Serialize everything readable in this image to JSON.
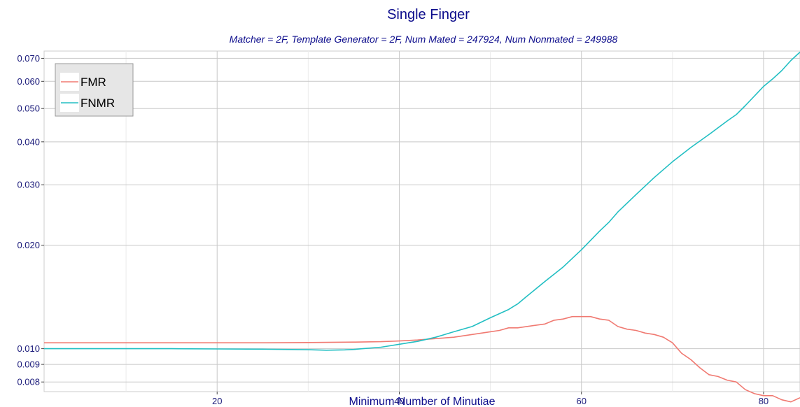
{
  "chart_data": {
    "type": "line",
    "title": "Single Finger",
    "subtitle": "Matcher = 2F,   Template Generator = 2F,   Num Mated = 247924,   Num Nonmated = 249988",
    "xlabel": "Minimum Number of Minutiae",
    "ylabel": "",
    "xlim": [
      1,
      84
    ],
    "ylim": [
      0.0075,
      0.0735
    ],
    "y_scale": "log",
    "x_ticks": [
      20,
      40,
      60,
      80
    ],
    "y_ticks": [
      0.008,
      0.009,
      0.01,
      0.02,
      0.03,
      0.04,
      0.05,
      0.06,
      0.07
    ],
    "x_tick_labels": [
      "20",
      "40",
      "60",
      "80"
    ],
    "y_tick_labels": [
      "0.008",
      "0.009",
      "0.010",
      "0.020",
      "0.030",
      "0.040",
      "0.050",
      "0.060",
      "0.070"
    ],
    "grid": true,
    "legend_position": "top-left",
    "series": [
      {
        "name": "FMR",
        "color": "#f07a72",
        "x": [
          1,
          5,
          10,
          15,
          20,
          25,
          30,
          35,
          38,
          40,
          42,
          44,
          46,
          48,
          50,
          51,
          52,
          53,
          54,
          55,
          56,
          57,
          58,
          59,
          60,
          61,
          62,
          63,
          64,
          65,
          66,
          67,
          68,
          69,
          70,
          71,
          72,
          73,
          74,
          75,
          76,
          77,
          78,
          79,
          80,
          81,
          82,
          83,
          84
        ],
        "y": [
          0.0104,
          0.0104,
          0.0104,
          0.0104,
          0.0104,
          0.0104,
          0.01042,
          0.01045,
          0.01048,
          0.01053,
          0.0106,
          0.0107,
          0.0108,
          0.011,
          0.0112,
          0.0113,
          0.0115,
          0.0115,
          0.0116,
          0.0117,
          0.0118,
          0.0121,
          0.0122,
          0.0124,
          0.0124,
          0.0124,
          0.0122,
          0.0121,
          0.0116,
          0.0114,
          0.0113,
          0.0111,
          0.011,
          0.0108,
          0.0104,
          0.0097,
          0.0093,
          0.0088,
          0.0084,
          0.0083,
          0.0081,
          0.008,
          0.0076,
          0.0074,
          0.0073,
          0.0073,
          0.0071,
          0.007,
          0.0072
        ]
      },
      {
        "name": "FNMR",
        "color": "#23bfc3",
        "x": [
          1,
          5,
          10,
          15,
          20,
          25,
          30,
          32,
          34,
          35,
          36,
          38,
          40,
          41,
          42,
          44,
          46,
          48,
          50,
          52,
          53,
          54,
          56,
          58,
          60,
          62,
          63,
          64,
          66,
          68,
          70,
          72,
          74,
          76,
          77,
          78,
          80,
          81,
          82,
          83,
          84
        ],
        "y": [
          0.01,
          0.01,
          0.01,
          0.01,
          0.00998,
          0.00997,
          0.00993,
          0.0099,
          0.00992,
          0.00995,
          0.01,
          0.0101,
          0.0103,
          0.0104,
          0.0105,
          0.0108,
          0.0112,
          0.0116,
          0.0123,
          0.013,
          0.0135,
          0.0142,
          0.0157,
          0.0173,
          0.0194,
          0.022,
          0.0233,
          0.025,
          0.0281,
          0.0315,
          0.035,
          0.0385,
          0.042,
          0.046,
          0.048,
          0.051,
          0.058,
          0.061,
          0.0645,
          0.069,
          0.073
        ]
      }
    ]
  }
}
